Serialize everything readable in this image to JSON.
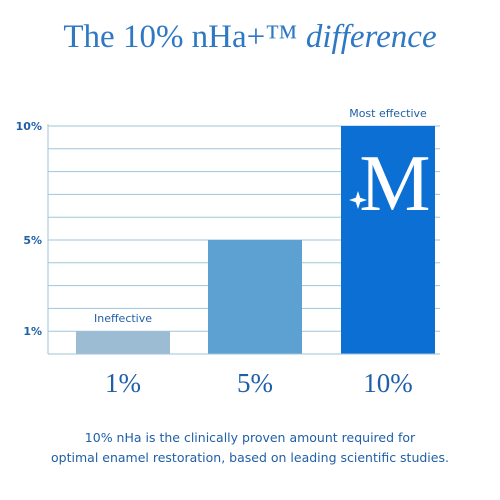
{
  "title": {
    "main": "The 10% nHa+™",
    "accent": "difference"
  },
  "colors": {
    "title": "#2f78c4",
    "text": "#1f5fa8",
    "grid": "#9ec6d8",
    "axis": "#9ec6d8",
    "bar_1": "#9cbcd3",
    "bar_2": "#5ca1d1",
    "bar_3": "#0c6fd4",
    "logo": "#ffffff"
  },
  "chart_data": {
    "type": "bar",
    "categories": [
      "1%",
      "5%",
      "10%"
    ],
    "values": [
      1,
      5,
      10
    ],
    "ylim": [
      0,
      10
    ],
    "ytick_values": [
      1,
      5,
      10
    ],
    "ytick_labels": [
      "1%",
      "5%",
      "10%"
    ],
    "bar_labels": [
      "Ineffective",
      "",
      "Most effective"
    ],
    "grid": true,
    "logo_on_bar": "M"
  },
  "caption": {
    "line1": "10% nHa is the clinically proven amount required for",
    "line2": "optimal enamel restoration, based on leading scientific studies."
  }
}
